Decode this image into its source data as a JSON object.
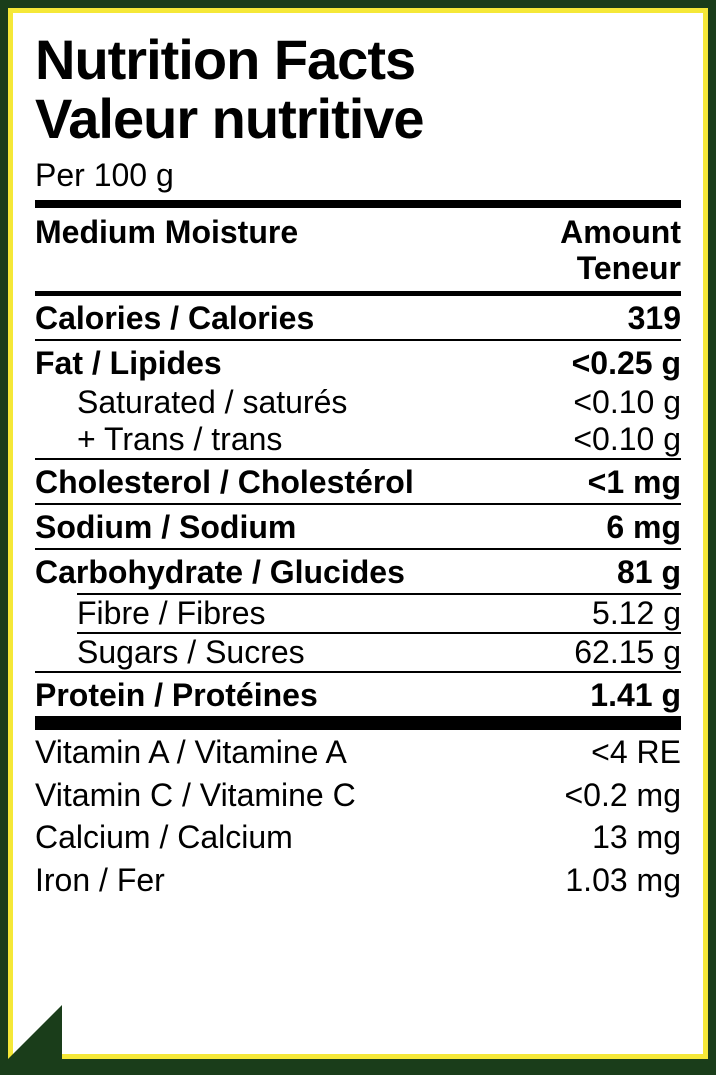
{
  "colors": {
    "background": "#1a3d1a",
    "panel": "#ffffff",
    "border": "#f5e838",
    "text": "#000000",
    "rule": "#000000"
  },
  "typography": {
    "title_fontsize": 56,
    "title_weight": 900,
    "body_fontsize": 32,
    "font_family": "Arial"
  },
  "title": {
    "line1": "Nutrition Facts",
    "line2": "Valeur nutritive"
  },
  "serving": "Per 100 g",
  "header": {
    "left": "Medium Moisture",
    "right_line1": "Amount",
    "right_line2": "Teneur"
  },
  "nutrients": {
    "calories": {
      "label": "Calories / Calories",
      "value": "319"
    },
    "fat": {
      "label": "Fat / Lipides",
      "value": "<0.25 g"
    },
    "saturated": {
      "label": "Saturated / saturés",
      "value": "<0.10 g"
    },
    "trans": {
      "label": "+ Trans / trans",
      "value": "<0.10 g"
    },
    "cholesterol": {
      "label": "Cholesterol / Cholestérol",
      "value": "<1 mg"
    },
    "sodium": {
      "label": "Sodium / Sodium",
      "value": "6 mg"
    },
    "carbohydrate": {
      "label": "Carbohydrate / Glucides",
      "value": "81 g"
    },
    "fibre": {
      "label": "Fibre / Fibres",
      "value": "5.12 g"
    },
    "sugars": {
      "label": "Sugars / Sucres",
      "value": "62.15 g"
    },
    "protein": {
      "label": "Protein / Protéines",
      "value": "1.41 g"
    }
  },
  "vitamins": {
    "vitamin_a": {
      "label": "Vitamin A / Vitamine A",
      "value": "<4 RE"
    },
    "vitamin_c": {
      "label": "Vitamin C / Vitamine C",
      "value": "<0.2 mg"
    },
    "calcium": {
      "label": "Calcium / Calcium",
      "value": "13 mg"
    },
    "iron": {
      "label": "Iron / Fer",
      "value": "1.03 mg"
    }
  }
}
